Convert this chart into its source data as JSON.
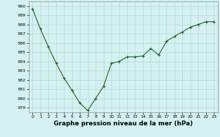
{
  "x": [
    0,
    1,
    2,
    3,
    4,
    5,
    6,
    7,
    8,
    9,
    10,
    11,
    12,
    13,
    14,
    15,
    16,
    17,
    18,
    19,
    20,
    21,
    22,
    23
  ],
  "y": [
    989.7,
    987.5,
    985.6,
    983.8,
    982.2,
    980.9,
    979.5,
    978.7,
    980.0,
    981.3,
    983.8,
    984.0,
    984.5,
    984.5,
    984.6,
    985.4,
    984.7,
    986.2,
    986.7,
    987.2,
    987.7,
    988.0,
    988.3,
    988.3
  ],
  "line_color": "#1a5e1a",
  "marker": "+",
  "marker_size": 3,
  "marker_linewidth": 0.8,
  "line_width": 0.8,
  "bg_color": "#d4f0f0",
  "grid_color": "#b0d8d8",
  "xlabel": "Graphe pression niveau de la mer (hPa)",
  "ylim": [
    978.5,
    990.5
  ],
  "yticks": [
    979,
    980,
    981,
    982,
    983,
    984,
    985,
    986,
    987,
    988,
    989,
    990
  ],
  "xticks": [
    0,
    1,
    2,
    3,
    4,
    5,
    6,
    7,
    8,
    9,
    10,
    11,
    12,
    13,
    14,
    15,
    16,
    17,
    18,
    19,
    20,
    21,
    22,
    23
  ],
  "xlabel_fontsize": 6.5,
  "tick_fontsize": 4.5
}
